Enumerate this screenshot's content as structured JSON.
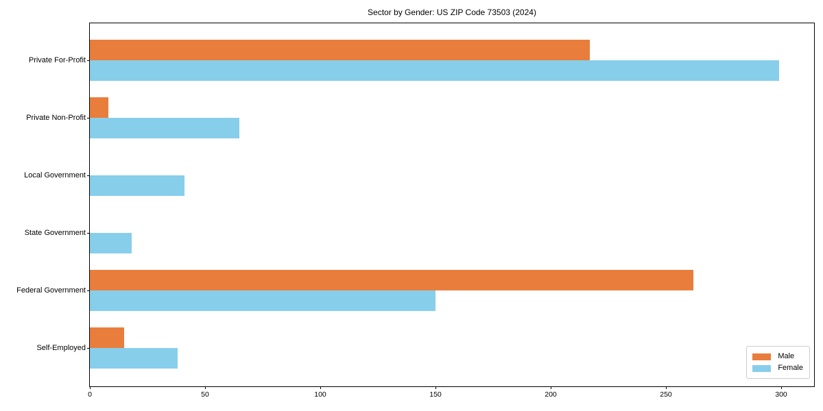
{
  "figure": {
    "background": "#ffffff",
    "axis_color": "#000000",
    "legend_border_color": "#cccccc"
  },
  "chart_data": {
    "type": "bar",
    "orientation": "horizontal",
    "title": "Sector by Gender: US ZIP Code 73503 (2024)",
    "categories": [
      "Private For-Profit",
      "Private Non-Profit",
      "Local Government",
      "State Government",
      "Federal Government",
      "Self-Employed"
    ],
    "series": [
      {
        "name": "Male",
        "color": "#E87D3C",
        "values": [
          217,
          8,
          0,
          0,
          262,
          15
        ]
      },
      {
        "name": "Female",
        "color": "#87CEEB",
        "values": [
          299,
          65,
          41,
          18,
          150,
          38
        ]
      }
    ],
    "xlabel": "",
    "ylabel": "",
    "xlim": [
      0,
      314
    ],
    "x_ticks": [
      0,
      50,
      100,
      150,
      200,
      250,
      300
    ],
    "legend": {
      "position": "lower-right"
    },
    "grid": false
  }
}
